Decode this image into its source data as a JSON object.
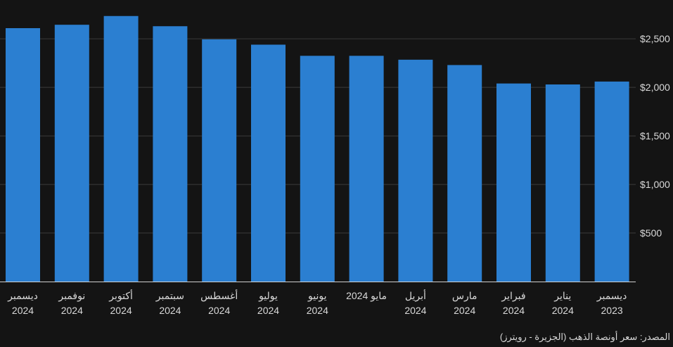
{
  "chart_data": {
    "type": "bar",
    "categories": [
      [
        "ديسمبر",
        "2024"
      ],
      [
        "نوفمبر",
        "2024"
      ],
      [
        "أكتوبر",
        "2024"
      ],
      [
        "سبتمبر",
        "2024"
      ],
      [
        "أغسطس",
        "2024"
      ],
      [
        "يوليو",
        "2024"
      ],
      [
        "يونيو",
        "2024"
      ],
      [
        "مايو 2024"
      ],
      [
        "أبريل",
        "2024"
      ],
      [
        "مارس",
        "2024"
      ],
      [
        "فبراير",
        "2024"
      ],
      [
        "يناير",
        "2024"
      ],
      [
        "ديسمبر",
        "2023"
      ]
    ],
    "values": [
      2610,
      2645,
      2735,
      2630,
      2495,
      2440,
      2325,
      2325,
      2285,
      2230,
      2040,
      2030,
      2060
    ],
    "ylim": [
      0,
      2900
    ],
    "yticks": [
      500,
      1000,
      1500,
      2000,
      2500
    ],
    "ytick_labels": [
      "$500",
      "$1,000",
      "$1,500",
      "$2,000",
      "$2,500"
    ],
    "grid": true,
    "colors": {
      "bar": "#2b7fd1",
      "background": "#141414",
      "grid": "#3a3a3a",
      "text": "#d9d9d9"
    }
  },
  "source_note": "المصدر: سعر أونصة الذهب (الجزيرة - رويترز)"
}
